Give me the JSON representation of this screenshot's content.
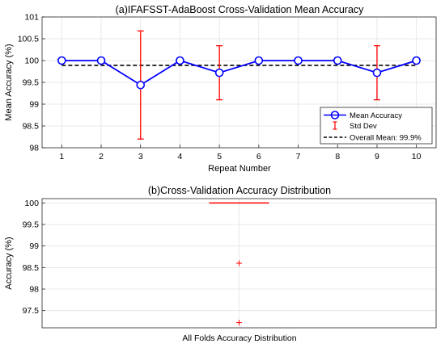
{
  "chart_data": [
    {
      "type": "line",
      "title": "(a)IFAFSST-AdaBoost Cross-Validation Mean Accuracy",
      "xlabel": "Repeat Number",
      "ylabel": "Mean Accuracy (%)",
      "x": [
        1,
        2,
        3,
        4,
        5,
        6,
        7,
        8,
        9,
        10
      ],
      "xlim": [
        0.5,
        10.5
      ],
      "ylim": [
        98,
        101
      ],
      "yticks": [
        "98",
        "98.5",
        "99",
        "99.5",
        "100",
        "100.5",
        "101"
      ],
      "xticks": [
        "1",
        "2",
        "3",
        "4",
        "5",
        "6",
        "7",
        "8",
        "9",
        "10"
      ],
      "grid": true,
      "legend_position": "bottom-right",
      "series": [
        {
          "name": "Mean Accuracy",
          "values": [
            100,
            100,
            99.44,
            100,
            99.72,
            100,
            100,
            100,
            99.72,
            100
          ],
          "color": "#0000ff"
        },
        {
          "name": "Std Dev",
          "kind": "errorbar",
          "x": [
            3,
            5,
            9
          ],
          "center": [
            99.44,
            99.72,
            99.72
          ],
          "low": [
            98.2,
            99.1,
            99.1
          ],
          "high": [
            100.68,
            100.34,
            100.34
          ],
          "color": "#ff0000"
        },
        {
          "name": "Overall Mean: 99.9%",
          "kind": "hline",
          "value": 99.89,
          "color": "#000000"
        }
      ]
    },
    {
      "type": "box",
      "title": "(b)Cross-Validation Accuracy Distribution",
      "xlabel": "All Folds Accuracy Distribution",
      "ylabel": "Accuracy (%)",
      "ylim": [
        97.1,
        100.1
      ],
      "yticks": [
        "97.5",
        "98",
        "98.5",
        "99",
        "99.5",
        "100"
      ],
      "grid": true,
      "median": 100,
      "q1": 100,
      "q3": 100,
      "outliers": [
        98.6,
        97.22
      ],
      "color": "#ff0000"
    }
  ]
}
